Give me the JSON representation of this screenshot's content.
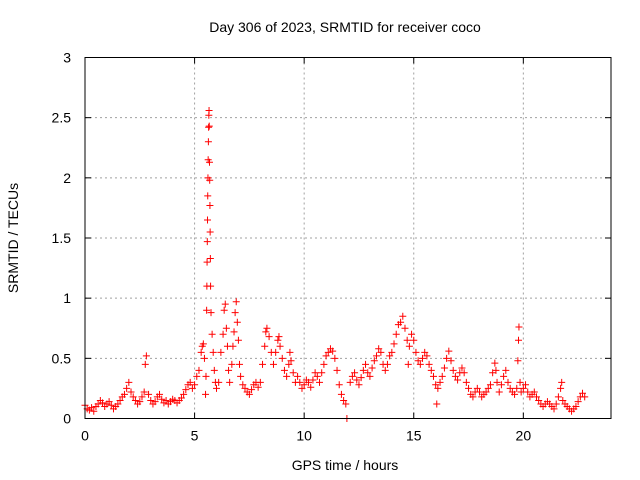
{
  "chart_data": {
    "type": "scatter",
    "title": "Day 306 of 2023, SRMTID for receiver coco",
    "xlabel": "GPS time / hours",
    "ylabel": "SRMTID / TECUs",
    "xlim": [
      0,
      24
    ],
    "ylim": [
      0,
      3
    ],
    "grid": true,
    "marker": "+",
    "color": "#ff0000",
    "xticks": [
      {
        "value": 0,
        "label": "0"
      },
      {
        "value": 5,
        "label": "5"
      },
      {
        "value": 10,
        "label": "10"
      },
      {
        "value": 15,
        "label": "15"
      },
      {
        "value": 20,
        "label": "20"
      }
    ],
    "yticks": [
      {
        "value": 0,
        "label": "0"
      },
      {
        "value": 0.5,
        "label": "0.5"
      },
      {
        "value": 1,
        "label": "1"
      },
      {
        "value": 1.5,
        "label": "1.5"
      },
      {
        "value": 2,
        "label": "2"
      },
      {
        "value": 2.5,
        "label": "2.5"
      },
      {
        "value": 3,
        "label": "3"
      }
    ],
    "series": [
      {
        "name": "SRMTID",
        "points": [
          [
            0.0,
            0.11
          ],
          [
            0.1,
            0.08
          ],
          [
            0.2,
            0.07
          ],
          [
            0.3,
            0.09
          ],
          [
            0.4,
            0.06
          ],
          [
            0.5,
            0.1
          ],
          [
            0.6,
            0.12
          ],
          [
            0.7,
            0.15
          ],
          [
            0.8,
            0.13
          ],
          [
            0.9,
            0.1
          ],
          [
            1.0,
            0.12
          ],
          [
            1.1,
            0.14
          ],
          [
            1.2,
            0.11
          ],
          [
            1.3,
            0.08
          ],
          [
            1.4,
            0.1
          ],
          [
            1.5,
            0.12
          ],
          [
            1.6,
            0.15
          ],
          [
            1.7,
            0.18
          ],
          [
            1.8,
            0.2
          ],
          [
            1.9,
            0.25
          ],
          [
            2.0,
            0.3
          ],
          [
            2.1,
            0.22
          ],
          [
            2.2,
            0.18
          ],
          [
            2.3,
            0.15
          ],
          [
            2.4,
            0.12
          ],
          [
            2.5,
            0.14
          ],
          [
            2.6,
            0.18
          ],
          [
            2.7,
            0.22
          ],
          [
            2.75,
            0.45
          ],
          [
            2.8,
            0.52
          ],
          [
            2.9,
            0.2
          ],
          [
            3.0,
            0.15
          ],
          [
            3.1,
            0.12
          ],
          [
            3.2,
            0.14
          ],
          [
            3.3,
            0.18
          ],
          [
            3.4,
            0.2
          ],
          [
            3.5,
            0.16
          ],
          [
            3.6,
            0.13
          ],
          [
            3.7,
            0.15
          ],
          [
            3.8,
            0.12
          ],
          [
            3.9,
            0.14
          ],
          [
            4.0,
            0.16
          ],
          [
            4.1,
            0.15
          ],
          [
            4.2,
            0.13
          ],
          [
            4.3,
            0.15
          ],
          [
            4.4,
            0.17
          ],
          [
            4.5,
            0.2
          ],
          [
            4.6,
            0.24
          ],
          [
            4.7,
            0.28
          ],
          [
            4.8,
            0.3
          ],
          [
            4.9,
            0.25
          ],
          [
            5.0,
            0.28
          ],
          [
            5.1,
            0.35
          ],
          [
            5.2,
            0.4
          ],
          [
            5.3,
            0.55
          ],
          [
            5.35,
            0.6
          ],
          [
            5.4,
            0.62
          ],
          [
            5.45,
            0.5
          ],
          [
            5.5,
            0.2
          ],
          [
            5.52,
            0.35
          ],
          [
            5.55,
            0.9
          ],
          [
            5.56,
            1.1
          ],
          [
            5.57,
            1.3
          ],
          [
            5.58,
            1.47
          ],
          [
            5.59,
            1.65
          ],
          [
            5.6,
            1.85
          ],
          [
            5.61,
            2.0
          ],
          [
            5.62,
            2.15
          ],
          [
            5.63,
            2.3
          ],
          [
            5.64,
            2.42
          ],
          [
            5.65,
            2.52
          ],
          [
            5.66,
            2.56
          ],
          [
            5.67,
            2.43
          ],
          [
            5.68,
            2.13
          ],
          [
            5.69,
            1.98
          ],
          [
            5.7,
            1.77
          ],
          [
            5.71,
            1.55
          ],
          [
            5.72,
            1.33
          ],
          [
            5.73,
            1.1
          ],
          [
            5.75,
            0.88
          ],
          [
            5.8,
            0.7
          ],
          [
            5.85,
            0.55
          ],
          [
            5.9,
            0.4
          ],
          [
            5.95,
            0.3
          ],
          [
            6.0,
            0.25
          ],
          [
            6.1,
            0.3
          ],
          [
            6.2,
            0.55
          ],
          [
            6.3,
            0.7
          ],
          [
            6.35,
            0.9
          ],
          [
            6.4,
            0.95
          ],
          [
            6.45,
            0.75
          ],
          [
            6.5,
            0.6
          ],
          [
            6.55,
            0.4
          ],
          [
            6.6,
            0.3
          ],
          [
            6.7,
            0.45
          ],
          [
            6.75,
            0.6
          ],
          [
            6.8,
            0.72
          ],
          [
            6.85,
            0.88
          ],
          [
            6.9,
            0.97
          ],
          [
            6.95,
            0.8
          ],
          [
            7.0,
            0.65
          ],
          [
            7.05,
            0.45
          ],
          [
            7.1,
            0.35
          ],
          [
            7.2,
            0.28
          ],
          [
            7.3,
            0.25
          ],
          [
            7.4,
            0.22
          ],
          [
            7.5,
            0.2
          ],
          [
            7.6,
            0.24
          ],
          [
            7.7,
            0.28
          ],
          [
            7.8,
            0.3
          ],
          [
            7.9,
            0.26
          ],
          [
            8.0,
            0.3
          ],
          [
            8.1,
            0.45
          ],
          [
            8.2,
            0.6
          ],
          [
            8.25,
            0.72
          ],
          [
            8.3,
            0.75
          ],
          [
            8.4,
            0.68
          ],
          [
            8.5,
            0.55
          ],
          [
            8.6,
            0.45
          ],
          [
            8.7,
            0.55
          ],
          [
            8.8,
            0.65
          ],
          [
            8.85,
            0.68
          ],
          [
            8.9,
            0.6
          ],
          [
            9.0,
            0.5
          ],
          [
            9.1,
            0.4
          ],
          [
            9.2,
            0.35
          ],
          [
            9.3,
            0.45
          ],
          [
            9.35,
            0.55
          ],
          [
            9.4,
            0.48
          ],
          [
            9.5,
            0.38
          ],
          [
            9.6,
            0.3
          ],
          [
            9.7,
            0.35
          ],
          [
            9.8,
            0.3
          ],
          [
            9.9,
            0.25
          ],
          [
            10.0,
            0.28
          ],
          [
            10.1,
            0.32
          ],
          [
            10.2,
            0.3
          ],
          [
            10.3,
            0.26
          ],
          [
            10.4,
            0.32
          ],
          [
            10.5,
            0.38
          ],
          [
            10.6,
            0.35
          ],
          [
            10.7,
            0.3
          ],
          [
            10.8,
            0.38
          ],
          [
            10.9,
            0.45
          ],
          [
            11.0,
            0.52
          ],
          [
            11.1,
            0.55
          ],
          [
            11.2,
            0.58
          ],
          [
            11.3,
            0.56
          ],
          [
            11.4,
            0.5
          ],
          [
            11.5,
            0.4
          ],
          [
            11.6,
            0.28
          ],
          [
            11.7,
            0.2
          ],
          [
            11.8,
            0.15
          ],
          [
            11.9,
            0.12
          ],
          [
            11.95,
            0.0
          ],
          [
            12.1,
            0.3
          ],
          [
            12.2,
            0.35
          ],
          [
            12.3,
            0.38
          ],
          [
            12.4,
            0.32
          ],
          [
            12.5,
            0.28
          ],
          [
            12.6,
            0.34
          ],
          [
            12.7,
            0.4
          ],
          [
            12.8,
            0.45
          ],
          [
            12.9,
            0.38
          ],
          [
            13.0,
            0.35
          ],
          [
            13.1,
            0.42
          ],
          [
            13.2,
            0.48
          ],
          [
            13.3,
            0.52
          ],
          [
            13.4,
            0.58
          ],
          [
            13.5,
            0.55
          ],
          [
            13.6,
            0.45
          ],
          [
            13.7,
            0.4
          ],
          [
            13.8,
            0.45
          ],
          [
            13.9,
            0.52
          ],
          [
            14.0,
            0.55
          ],
          [
            14.1,
            0.62
          ],
          [
            14.2,
            0.7
          ],
          [
            14.3,
            0.78
          ],
          [
            14.4,
            0.8
          ],
          [
            14.5,
            0.85
          ],
          [
            14.6,
            0.75
          ],
          [
            14.7,
            0.65
          ],
          [
            14.75,
            0.45
          ],
          [
            14.8,
            0.6
          ],
          [
            14.9,
            0.7
          ],
          [
            15.0,
            0.65
          ],
          [
            15.1,
            0.55
          ],
          [
            15.2,
            0.48
          ],
          [
            15.3,
            0.45
          ],
          [
            15.4,
            0.5
          ],
          [
            15.5,
            0.55
          ],
          [
            15.6,
            0.52
          ],
          [
            15.7,
            0.45
          ],
          [
            15.8,
            0.4
          ],
          [
            15.9,
            0.35
          ],
          [
            16.0,
            0.28
          ],
          [
            16.05,
            0.12
          ],
          [
            16.1,
            0.25
          ],
          [
            16.2,
            0.3
          ],
          [
            16.3,
            0.35
          ],
          [
            16.4,
            0.42
          ],
          [
            16.5,
            0.5
          ],
          [
            16.6,
            0.56
          ],
          [
            16.7,
            0.48
          ],
          [
            16.8,
            0.4
          ],
          [
            16.9,
            0.35
          ],
          [
            17.0,
            0.32
          ],
          [
            17.1,
            0.38
          ],
          [
            17.2,
            0.42
          ],
          [
            17.3,
            0.38
          ],
          [
            17.4,
            0.3
          ],
          [
            17.5,
            0.25
          ],
          [
            17.6,
            0.2
          ],
          [
            17.7,
            0.18
          ],
          [
            17.8,
            0.22
          ],
          [
            17.9,
            0.25
          ],
          [
            18.0,
            0.22
          ],
          [
            18.1,
            0.18
          ],
          [
            18.2,
            0.2
          ],
          [
            18.3,
            0.22
          ],
          [
            18.4,
            0.25
          ],
          [
            18.5,
            0.28
          ],
          [
            18.6,
            0.38
          ],
          [
            18.7,
            0.46
          ],
          [
            18.75,
            0.4
          ],
          [
            18.8,
            0.3
          ],
          [
            18.9,
            0.22
          ],
          [
            19.0,
            0.28
          ],
          [
            19.1,
            0.35
          ],
          [
            19.2,
            0.4
          ],
          [
            19.3,
            0.3
          ],
          [
            19.4,
            0.25
          ],
          [
            19.5,
            0.22
          ],
          [
            19.6,
            0.2
          ],
          [
            19.7,
            0.25
          ],
          [
            19.75,
            0.48
          ],
          [
            19.78,
            0.65
          ],
          [
            19.8,
            0.76
          ],
          [
            19.85,
            0.3
          ],
          [
            19.9,
            0.22
          ],
          [
            20.0,
            0.25
          ],
          [
            20.1,
            0.28
          ],
          [
            20.2,
            0.22
          ],
          [
            20.3,
            0.18
          ],
          [
            20.4,
            0.2
          ],
          [
            20.5,
            0.22
          ],
          [
            20.6,
            0.18
          ],
          [
            20.7,
            0.15
          ],
          [
            20.8,
            0.12
          ],
          [
            20.9,
            0.1
          ],
          [
            21.0,
            0.12
          ],
          [
            21.1,
            0.14
          ],
          [
            21.2,
            0.12
          ],
          [
            21.3,
            0.1
          ],
          [
            21.4,
            0.08
          ],
          [
            21.5,
            0.12
          ],
          [
            21.6,
            0.18
          ],
          [
            21.7,
            0.25
          ],
          [
            21.75,
            0.3
          ],
          [
            21.8,
            0.15
          ],
          [
            21.9,
            0.12
          ],
          [
            22.0,
            0.1
          ],
          [
            22.1,
            0.08
          ],
          [
            22.2,
            0.06
          ],
          [
            22.3,
            0.08
          ],
          [
            22.4,
            0.1
          ],
          [
            22.5,
            0.14
          ],
          [
            22.6,
            0.18
          ],
          [
            22.7,
            0.21
          ],
          [
            22.8,
            0.18
          ]
        ]
      }
    ]
  }
}
